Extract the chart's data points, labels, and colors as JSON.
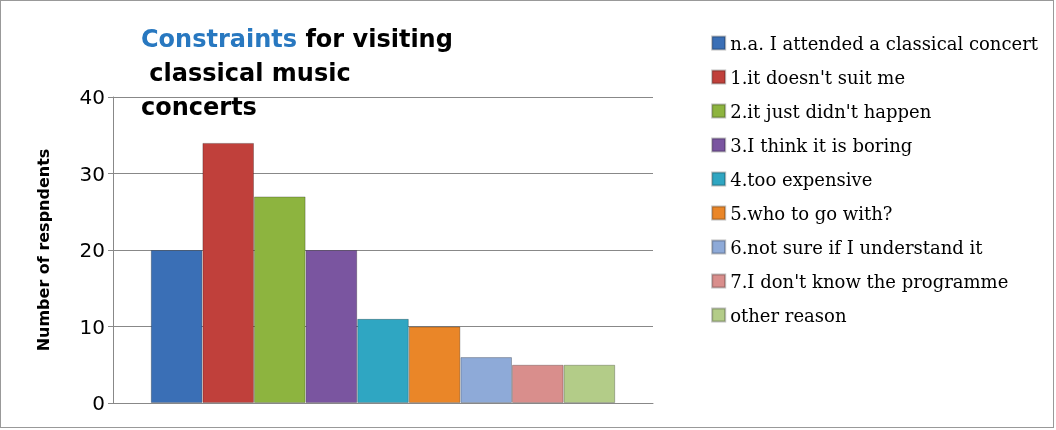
{
  "chart_data": {
    "type": "bar",
    "title": "Constraints for visiting classical music concerts",
    "ylabel": "Number of respndents",
    "categories": [
      null
    ],
    "series": [
      {
        "name": "n.a. I attended a classical concert",
        "color": "#3a6fb6",
        "values": [
          20
        ]
      },
      {
        "name": "1.it doesn't suit me",
        "color": "#c0403b",
        "values": [
          34
        ]
      },
      {
        "name": "2.it just didn't happen",
        "color": "#8db43f",
        "values": [
          27
        ]
      },
      {
        "name": "3.I think it is boring",
        "color": "#7a55a0",
        "values": [
          20
        ]
      },
      {
        "name": "4.too expensive",
        "color": "#2fa6c2",
        "values": [
          11
        ]
      },
      {
        "name": "5.who to go with?",
        "color": "#ea8628",
        "values": [
          10
        ]
      },
      {
        "name": "6.not sure if I understand it",
        "color": "#8eaad8",
        "values": [
          6
        ]
      },
      {
        "name": "7.I don't know the programme",
        "color": "#d98e8c",
        "values": [
          5
        ]
      },
      {
        "name": "other reason",
        "color": "#b3cc88",
        "values": [
          5
        ]
      }
    ],
    "ylim": [
      0,
      40
    ],
    "yticks": [
      0,
      10,
      20,
      30,
      40
    ],
    "grid": "y",
    "legend": "right"
  }
}
